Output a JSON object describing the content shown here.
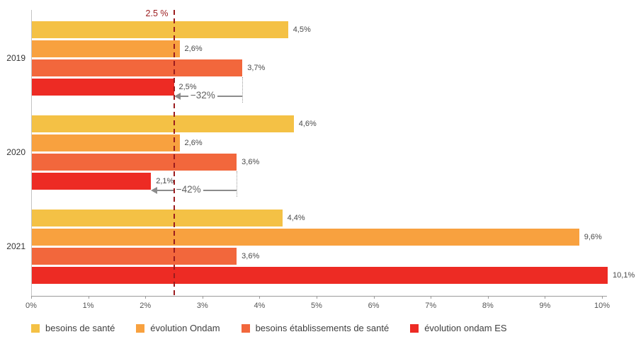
{
  "chart_data": {
    "type": "bar",
    "orientation": "horizontal",
    "title": "",
    "xlabel": "",
    "ylabel": "",
    "xlim": [
      0,
      10
    ],
    "x_ticks": [
      "0%",
      "1%",
      "2%",
      "3%",
      "4%",
      "5%",
      "6%",
      "7%",
      "8%",
      "9%",
      "10%"
    ],
    "grid": false,
    "legend_position": "bottom",
    "categories": [
      "2019",
      "2020",
      "2021"
    ],
    "series": [
      {
        "name": "besoins de santé",
        "color": "#F4C145",
        "values": [
          4.5,
          4.6,
          4.4
        ],
        "value_labels": [
          "4,5%",
          "4,6%",
          "4,4%"
        ]
      },
      {
        "name": "évolution Ondam",
        "color": "#F8A13F",
        "values": [
          2.6,
          2.6,
          9.6
        ],
        "value_labels": [
          "2,6%",
          "2,6%",
          "9,6%"
        ]
      },
      {
        "name": "besoins établissements de santé",
        "color": "#F2673C",
        "values": [
          3.7,
          3.6,
          3.6
        ],
        "value_labels": [
          "3,7%",
          "3,6%",
          "3,6%"
        ]
      },
      {
        "name": "évolution ondam ES",
        "color": "#ED2B24",
        "values": [
          2.5,
          2.1,
          10.1
        ],
        "value_labels": [
          "2,5%",
          "2,1%",
          "10,1%"
        ]
      }
    ],
    "reference_line": {
      "value": 2.5,
      "label": "2.5 %",
      "color": "#9B1C1E"
    },
    "annotations": [
      {
        "category": "2019",
        "label": "−32%",
        "from_value": 3.7,
        "to_value": 2.5
      },
      {
        "category": "2020",
        "label": "−42%",
        "from_value": 3.6,
        "to_value": 2.1
      }
    ],
    "annotation_color": "#8C8C8C",
    "axis_color": "#9b9b9b"
  }
}
